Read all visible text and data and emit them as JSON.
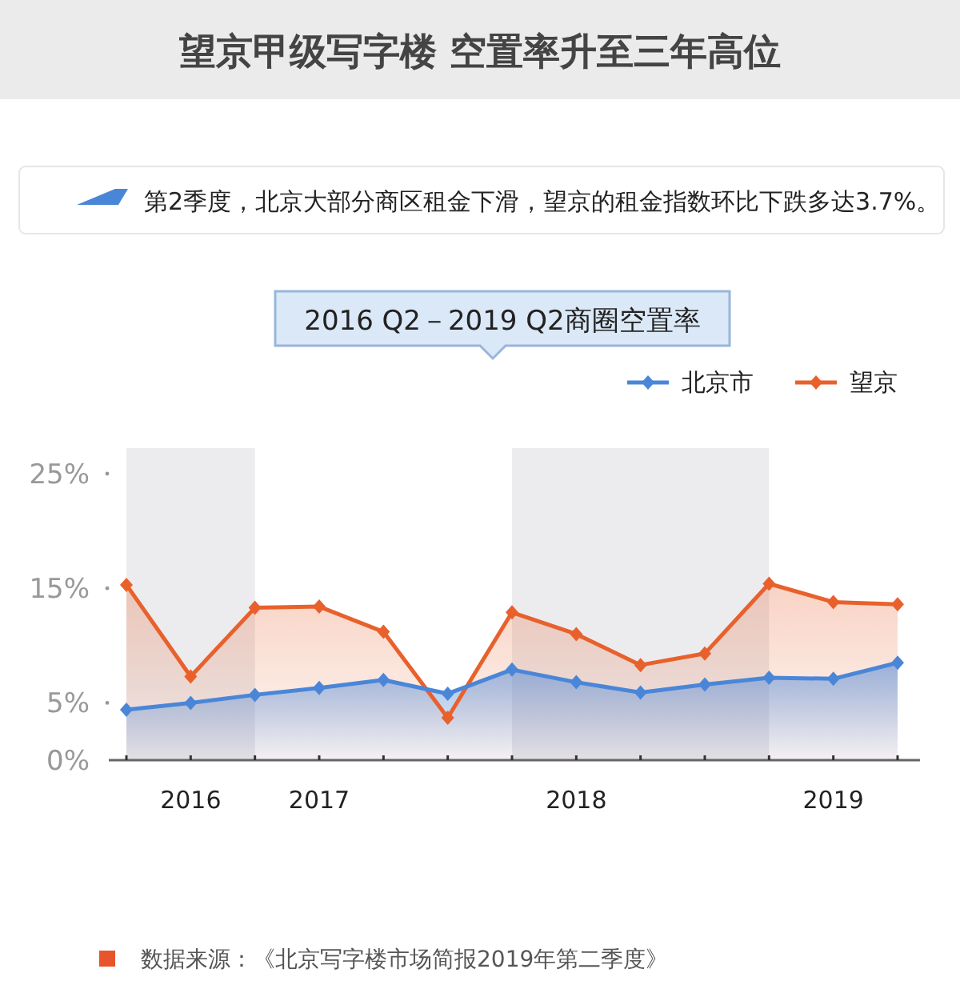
{
  "chart_data": {
    "type": "area",
    "title": "望京甲级写字楼  空置率升至三年高位",
    "subtitle": "2016 Q2－2019 Q2商圈空置率",
    "annotations": [
      "第2季度，北京大部分商区租金下滑，望京的租金指数环比下跌多达3.7%。",
      "数据来源：《北京写字楼市场简报2019年第二季度》"
    ],
    "categories": [
      null,
      "2016",
      null,
      "2017",
      null,
      null,
      null,
      "2018",
      null,
      null,
      null,
      "2019",
      null
    ],
    "series": [
      {
        "name": "北京市",
        "color": "#4a86d8",
        "values": [
          4.4,
          5.0,
          5.7,
          6.3,
          7.0,
          5.8,
          7.9,
          6.8,
          5.9,
          6.6,
          7.2,
          7.1,
          8.5
        ]
      },
      {
        "name": "望京",
        "color": "#e8612c",
        "values": [
          15.3,
          7.3,
          13.3,
          13.4,
          11.2,
          3.7,
          12.9,
          11.0,
          8.3,
          9.3,
          15.4,
          13.8,
          13.6
        ]
      }
    ],
    "ylim": [
      0,
      25
    ],
    "yticks": [
      {
        "value": 0,
        "label": "0%"
      },
      {
        "value": 5,
        "label": "5%"
      },
      {
        "value": 15,
        "label": "15%"
      },
      {
        "value": 25,
        "label": "25%"
      }
    ],
    "marker": "diamond",
    "legend": "top right",
    "grid": false
  }
}
